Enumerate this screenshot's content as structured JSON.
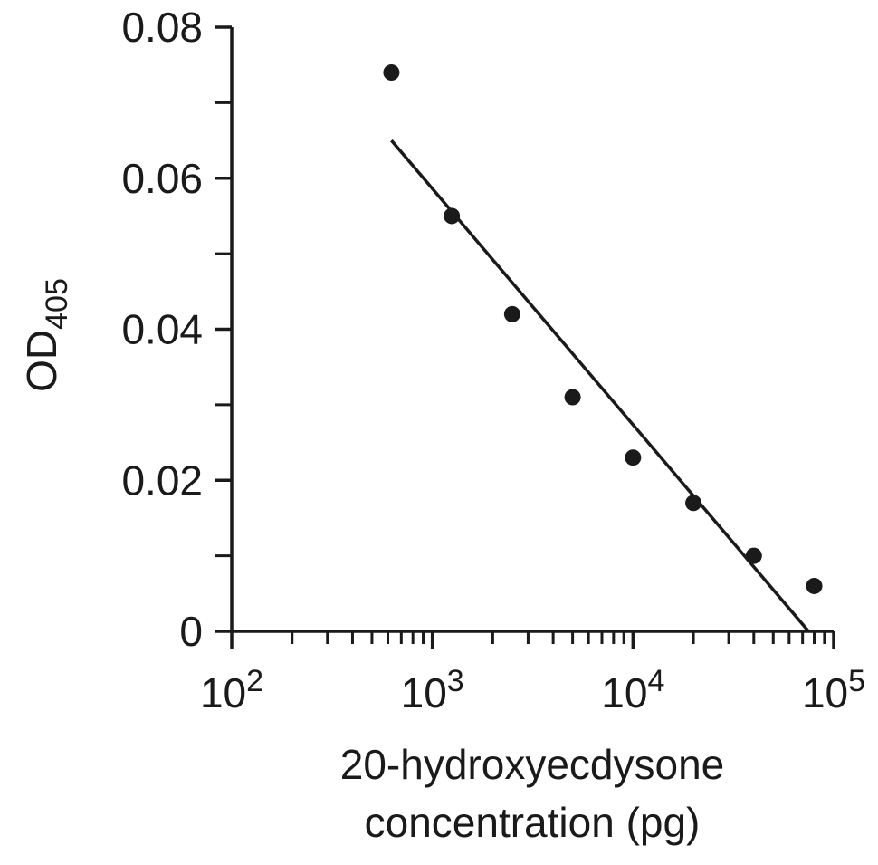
{
  "chart_data": {
    "type": "scatter",
    "title": "",
    "ylabel": {
      "main": "OD",
      "subscript": "405"
    },
    "xlabel_lines": [
      "20-hydroxyecdysone",
      "concentration (pg)"
    ],
    "x_scale": "log",
    "xlim": [
      100,
      100000
    ],
    "ylim": [
      0,
      0.08
    ],
    "x_ticks": [
      {
        "base": "10",
        "exp": "2",
        "value": 100
      },
      {
        "base": "10",
        "exp": "3",
        "value": 1000
      },
      {
        "base": "10",
        "exp": "4",
        "value": 10000
      },
      {
        "base": "10",
        "exp": "5",
        "value": 100000
      }
    ],
    "y_ticks": [
      {
        "label": "0",
        "value": 0
      },
      {
        "label": "0.02",
        "value": 0.02
      },
      {
        "label": "0.04",
        "value": 0.04
      },
      {
        "label": "0.06",
        "value": 0.06
      },
      {
        "label": "0.08",
        "value": 0.08
      }
    ],
    "y_minor_ticks": [
      0.01,
      0.03,
      0.05,
      0.07
    ],
    "points": [
      {
        "x": 625,
        "y": 0.074
      },
      {
        "x": 1250,
        "y": 0.055
      },
      {
        "x": 2500,
        "y": 0.042
      },
      {
        "x": 5000,
        "y": 0.031
      },
      {
        "x": 10000,
        "y": 0.023
      },
      {
        "x": 20000,
        "y": 0.017
      },
      {
        "x": 40000,
        "y": 0.01
      },
      {
        "x": 80000,
        "y": 0.006
      }
    ],
    "fit_line": {
      "x": [
        625,
        75000
      ],
      "y": [
        0.065,
        0.0
      ]
    },
    "grid": false,
    "legend": "none"
  }
}
